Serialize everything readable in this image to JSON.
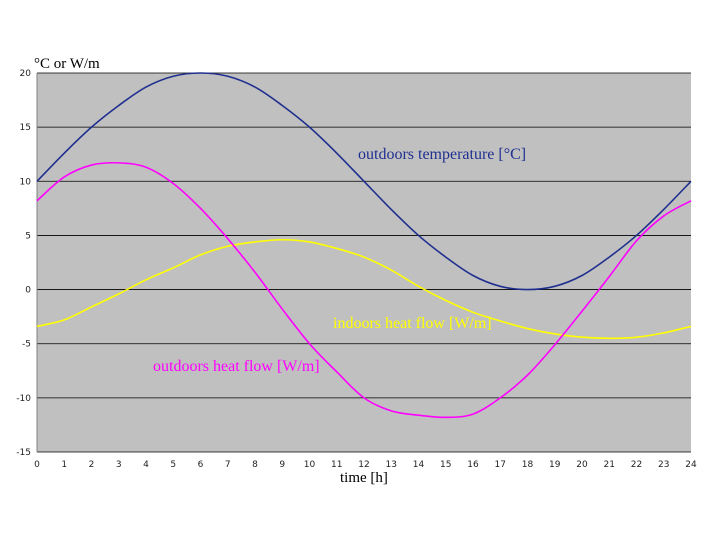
{
  "chart_data": {
    "type": "line",
    "title": "",
    "xlabel": "time [h]",
    "ylabel": "°C or W/m",
    "xlim": [
      0,
      24
    ],
    "ylim": [
      -15,
      20
    ],
    "x_ticks": [
      0,
      1,
      2,
      3,
      4,
      5,
      6,
      7,
      8,
      9,
      10,
      11,
      12,
      13,
      14,
      15,
      16,
      17,
      18,
      19,
      20,
      21,
      22,
      23,
      24
    ],
    "y_ticks": [
      -15,
      -10,
      -5,
      0,
      5,
      10,
      15,
      20
    ],
    "grid": "horizontal",
    "background": "#c0c0c0",
    "x": [
      0,
      1,
      2,
      3,
      4,
      5,
      6,
      7,
      8,
      9,
      10,
      11,
      12,
      13,
      14,
      15,
      16,
      17,
      18,
      19,
      20,
      21,
      22,
      23,
      24
    ],
    "series": [
      {
        "name": "outdoors temperature [°C]",
        "color": "#1f2f8f",
        "values": [
          10,
          12.6,
          15,
          17,
          18.7,
          19.7,
          20,
          19.7,
          18.7,
          17,
          15,
          12.6,
          10,
          7.4,
          5,
          3,
          1.3,
          0.3,
          0,
          0.3,
          1.3,
          3,
          5,
          7.4,
          10
        ]
      },
      {
        "name": "indoors heat flow [W/m]",
        "color": "#ffff00",
        "values": [
          -3.4,
          -2.8,
          -1.6,
          -0.4,
          0.9,
          2,
          3.2,
          4,
          4.4,
          4.6,
          4.4,
          3.8,
          3,
          1.8,
          0.3,
          -1,
          -2.1,
          -2.9,
          -3.6,
          -4.1,
          -4.4,
          -4.5,
          -4.4,
          -4,
          -3.4
        ]
      },
      {
        "name": "outdoors heat flow [W/m]",
        "color": "#ff00ff",
        "values": [
          8.2,
          10.4,
          11.5,
          11.7,
          11.3,
          9.8,
          7.5,
          4.7,
          1.6,
          -1.8,
          -5,
          -7.6,
          -10,
          -11.2,
          -11.6,
          -11.8,
          -11.5,
          -10,
          -7.9,
          -5.1,
          -2,
          1.2,
          4.5,
          6.8,
          8.2
        ]
      }
    ]
  }
}
